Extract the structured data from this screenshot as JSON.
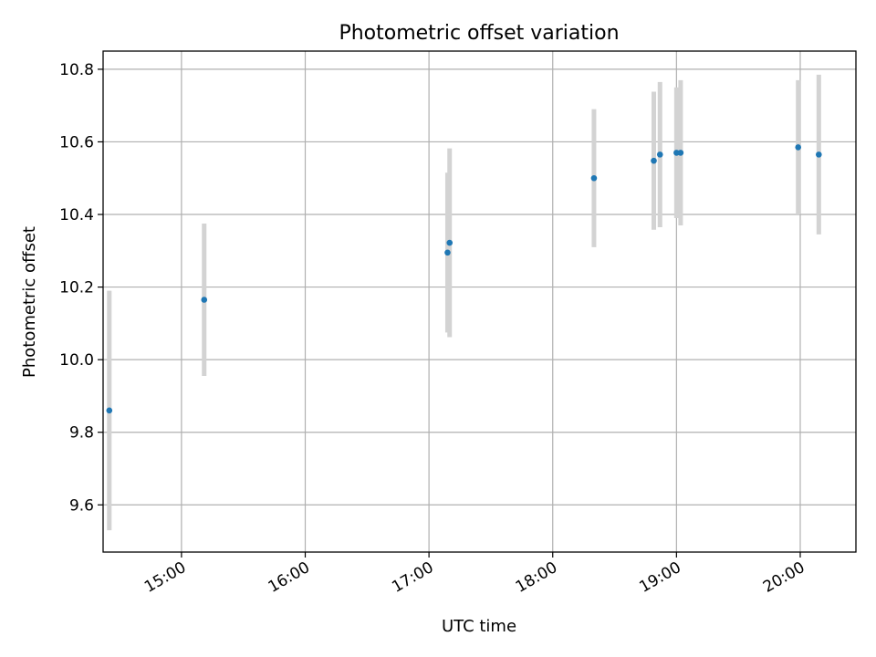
{
  "chart_data": {
    "type": "scatter",
    "title": "Photometric offset variation",
    "xlabel": "UTC time",
    "ylabel": "Photometric offset",
    "xlim": [
      "14:22",
      "20:27"
    ],
    "ylim": [
      9.47,
      10.85
    ],
    "x_ticks": [
      "15:00",
      "16:00",
      "17:00",
      "18:00",
      "19:00",
      "20:00"
    ],
    "y_ticks": [
      9.6,
      9.8,
      10.0,
      10.2,
      10.4,
      10.6,
      10.8
    ],
    "y_tick_labels": [
      "9.6",
      "9.8",
      "10.0",
      "10.2",
      "10.4",
      "10.6",
      "10.8"
    ],
    "grid": true,
    "legend": "none",
    "colors": {
      "point": "#1f77b4",
      "errorbar": "#d3d3d3",
      "grid": "#b0b0b0"
    },
    "points": [
      {
        "x": "14:25",
        "y": 9.86,
        "err": 0.33
      },
      {
        "x": "15:11",
        "y": 10.165,
        "err": 0.21
      },
      {
        "x": "17:09",
        "y": 10.295,
        "err": 0.22
      },
      {
        "x": "17:10",
        "y": 10.322,
        "err": 0.26
      },
      {
        "x": "18:20",
        "y": 10.5,
        "err": 0.19
      },
      {
        "x": "18:49",
        "y": 10.548,
        "err": 0.19
      },
      {
        "x": "18:52",
        "y": 10.565,
        "err": 0.2
      },
      {
        "x": "19:00",
        "y": 10.57,
        "err": 0.18
      },
      {
        "x": "19:02",
        "y": 10.57,
        "err": 0.2
      },
      {
        "x": "19:59",
        "y": 10.585,
        "err": 0.185
      },
      {
        "x": "20:09",
        "y": 10.565,
        "err": 0.22
      }
    ]
  }
}
